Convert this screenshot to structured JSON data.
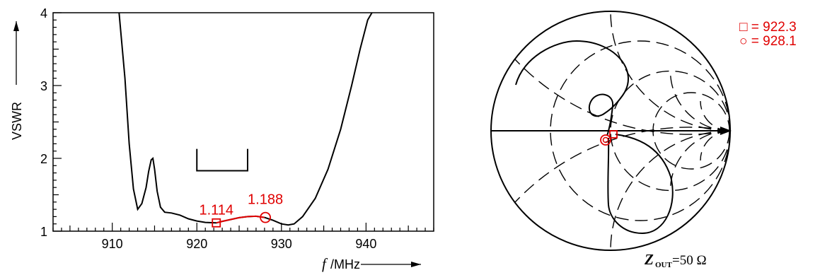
{
  "colors": {
    "curve": "#000000",
    "marker": "#e00000",
    "background": "#ffffff"
  },
  "chart_data": [
    {
      "type": "line",
      "title": "",
      "xlabel_var": "f",
      "xlabel_unit": "/MHz",
      "ylabel": "VSWR",
      "xlim": [
        903,
        948
      ],
      "ylim": [
        1,
        4
      ],
      "xticks": [
        "910",
        "920",
        "930",
        "940"
      ],
      "yticks": [
        "1",
        "2",
        "3",
        "4"
      ],
      "grid": false,
      "series": [
        {
          "x": [
            910.8,
            911.5,
            912,
            912.5,
            913,
            913.5,
            914,
            914.3,
            914.6,
            914.8,
            915.0,
            915.3,
            915.7,
            916.2,
            917,
            918,
            919,
            920,
            921,
            922.3,
            923,
            924,
            925,
            926,
            927,
            928,
            929,
            930,
            930.8,
            931.5,
            932.5,
            934,
            935.5,
            937,
            938.3,
            939.3,
            940.2,
            940.7
          ],
          "values": [
            4.0,
            3.1,
            2.2,
            1.58,
            1.3,
            1.38,
            1.6,
            1.82,
            1.98,
            2.0,
            1.85,
            1.55,
            1.33,
            1.26,
            1.25,
            1.22,
            1.17,
            1.14,
            1.12,
            1.114,
            1.135,
            1.16,
            1.185,
            1.2,
            1.205,
            1.188,
            1.15,
            1.1,
            1.085,
            1.1,
            1.2,
            1.45,
            1.85,
            2.4,
            3.0,
            3.5,
            3.9,
            4.0
          ]
        }
      ],
      "annotations": [
        {
          "label": "1.114",
          "x": 922.3,
          "y": 1.114,
          "marker": "square"
        },
        {
          "label": "1.188",
          "x": 928.1,
          "y": 1.188,
          "marker": "circle"
        }
      ],
      "bracket": {
        "x1": 920,
        "x2": 926,
        "y_top": 2.13,
        "y_bottom": 1.83
      }
    },
    {
      "type": "smith",
      "title": "",
      "caption_var": "Z",
      "caption_sub": "OUT",
      "caption_value": "=50  Ω",
      "legend": [
        {
          "marker": "square",
          "text": "□ =  922.3"
        },
        {
          "marker": "circle",
          "text": "○ =  928.1"
        }
      ],
      "legend_position": "top-right"
    }
  ]
}
